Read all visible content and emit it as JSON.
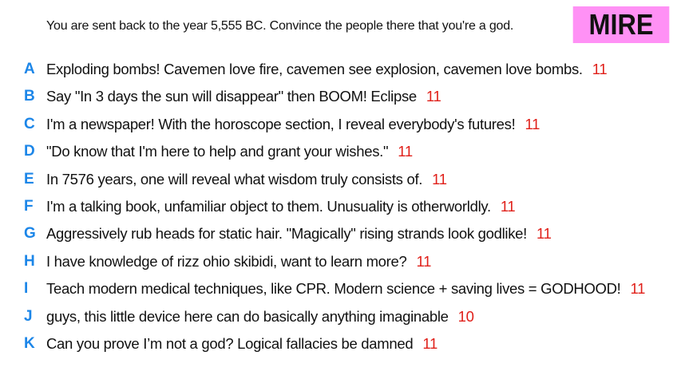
{
  "prompt": "You are sent back to the year 5,555 BC. Convince the people there that you're a god.",
  "player_tag": "MIRE",
  "colors": {
    "letter": "#1c86e8",
    "score": "#e0201a",
    "tag_background": "#ff91f5"
  },
  "answers": [
    {
      "letter": "A",
      "text": "Exploding bombs! Cavemen love fire, cavemen see explosion, cavemen love bombs.",
      "score": "11"
    },
    {
      "letter": "B",
      "text": "Say \"In 3 days the sun will disappear\" then BOOM! Eclipse",
      "score": "11"
    },
    {
      "letter": "C",
      "text": "I'm a newspaper! With the horoscope section, I reveal everybody's futures!",
      "score": "11"
    },
    {
      "letter": "D",
      "text": "\"Do know that I'm here to help and grant your wishes.\"",
      "score": "11"
    },
    {
      "letter": "E",
      "text": "In 7576 years, one will reveal what wisdom truly consists of.",
      "score": "11"
    },
    {
      "letter": "F",
      "text": "I'm a talking book, unfamiliar object to them. Unusuality is otherworldly.",
      "score": "11"
    },
    {
      "letter": "G",
      "text": "Aggressively rub heads for static hair. \"Magically\" rising strands look godlike!",
      "score": "11"
    },
    {
      "letter": "H",
      "text": "I have knowledge of rizz ohio skibidi, want to learn more?",
      "score": "11"
    },
    {
      "letter": "I",
      "text": "Teach modern medical techniques, like CPR. Modern science + saving lives = GODHOOD!",
      "score": "11"
    },
    {
      "letter": "J",
      "text": "guys, this little device here can do basically anything imaginable",
      "score": "10"
    },
    {
      "letter": "K",
      "text": "Can you prove I’m not a god? Logical fallacies be damned",
      "score": "11"
    }
  ]
}
